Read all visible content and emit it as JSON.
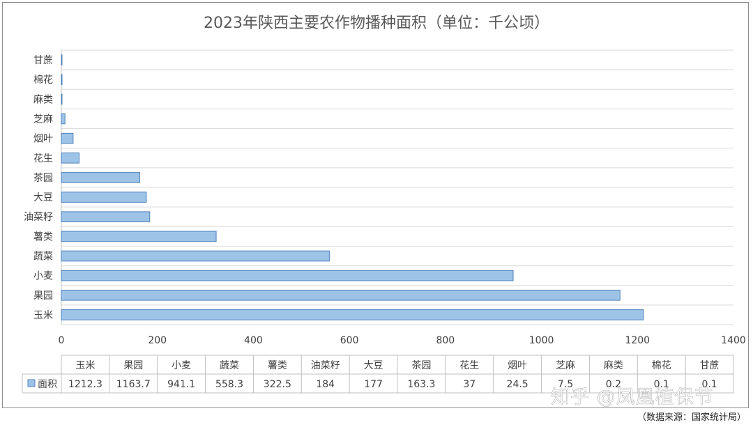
{
  "colors": {
    "bar_fill": "#9dc3e6",
    "bar_stroke": "#4f81bd",
    "grid": "#d9d9d9",
    "text": "#404040"
  },
  "chart_data": {
    "type": "bar",
    "orientation": "horizontal",
    "title": "2023年陕西主要农作物播种面积（单位：千公顷）",
    "categories": [
      "玉米",
      "果园",
      "小麦",
      "蔬菜",
      "薯类",
      "油菜籽",
      "大豆",
      "茶园",
      "花生",
      "烟叶",
      "芝麻",
      "麻类",
      "棉花",
      "甘蔗"
    ],
    "series": [
      {
        "name": "面积",
        "values": [
          1212.3,
          1163.7,
          941.1,
          558.3,
          322.5,
          184,
          177,
          163.3,
          37,
          24.5,
          7.5,
          0.2,
          0.1,
          0.1
        ],
        "value_labels": [
          "1212.3",
          "1163.7",
          "941.1",
          "558.3",
          "322.5",
          "184",
          "177",
          "163.3",
          "37",
          "24.5",
          "7.5",
          "0.2",
          "0.1",
          "0.1"
        ]
      }
    ],
    "xlim": [
      0,
      1400
    ],
    "xticks": [
      0,
      200,
      400,
      600,
      800,
      1000,
      1200,
      1400
    ],
    "xtick_labels": [
      "0",
      "200",
      "400",
      "600",
      "800",
      "1000",
      "1200",
      "1400"
    ],
    "grid": true,
    "data_table": true,
    "legend_placement": "data table"
  },
  "source_note": "（数据来源：国家统计局）",
  "watermark": "知乎 @凤凰植保节"
}
